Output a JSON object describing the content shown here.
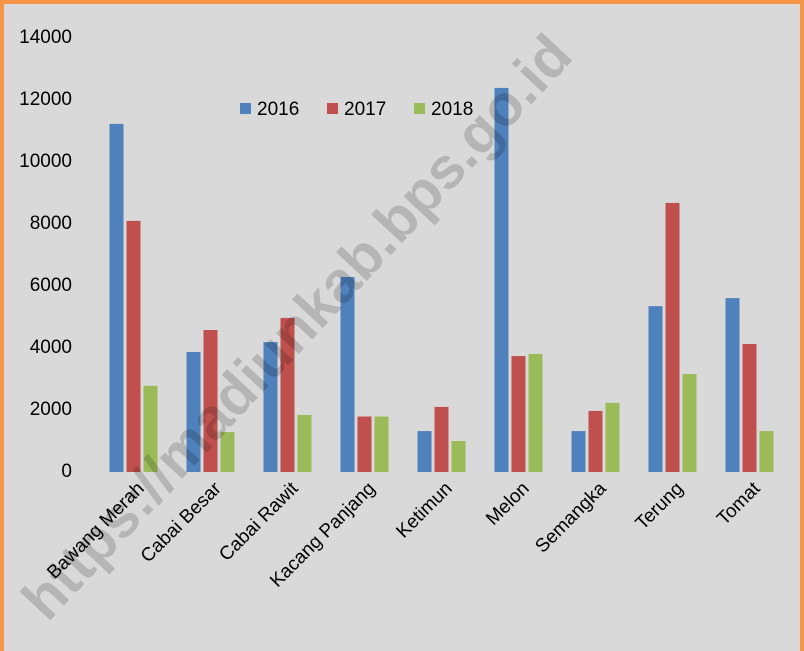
{
  "chart_data": {
    "type": "bar",
    "watermark": "https://madiunkab.bps.go.id",
    "categories": [
      "Bawang Merah",
      "Cabai Besar",
      "Cabai Rawit",
      "Kacang Panjang",
      "Ketimun",
      "Melon",
      "Semangka",
      "Terung",
      "Tomat"
    ],
    "series": [
      {
        "name": "2016",
        "color": "#4f81bd",
        "values": [
          11230,
          3870,
          4190,
          6290,
          1320,
          12390,
          1320,
          5350,
          5610
        ]
      },
      {
        "name": "2017",
        "color": "#c0504d",
        "values": [
          8100,
          4580,
          4970,
          1790,
          2100,
          3740,
          1970,
          8680,
          4130
        ]
      },
      {
        "name": "2018",
        "color": "#9bbb59",
        "values": [
          2780,
          1290,
          1840,
          1790,
          1000,
          3810,
          2230,
          3160,
          1320
        ]
      }
    ],
    "ylim": [
      0,
      14000
    ],
    "yticks": [
      0,
      2000,
      4000,
      6000,
      8000,
      10000,
      12000,
      14000
    ],
    "grid": false,
    "legend": "top"
  }
}
